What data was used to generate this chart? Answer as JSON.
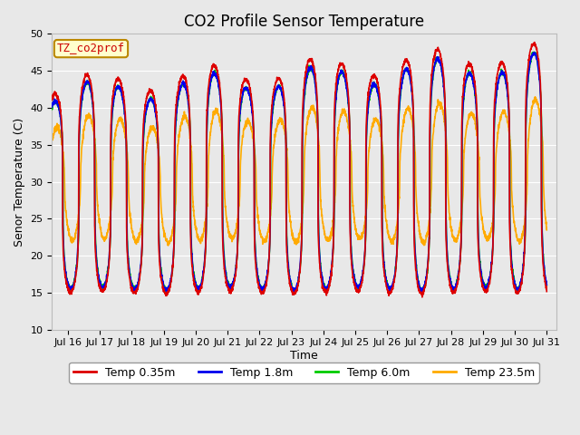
{
  "title": "CO2 Profile Sensor Temperature",
  "xlabel": "Time",
  "ylabel": "Senor Temperature (C)",
  "ylim": [
    10,
    50
  ],
  "xlim_days": [
    15.5,
    31.3
  ],
  "plot_bg": "#e8e8e8",
  "fig_bg": "#e8e8e8",
  "grid_color": "#d0d0d0",
  "series": {
    "temp_035": {
      "label": "Temp 0.35m",
      "color": "#dd0000",
      "lw": 1.2
    },
    "temp_18": {
      "label": "Temp 1.8m",
      "color": "#0000ee",
      "lw": 1.2
    },
    "temp_60": {
      "label": "Temp 6.0m",
      "color": "#00cc00",
      "lw": 1.2
    },
    "temp_235": {
      "label": "Temp 23.5m",
      "color": "#ffaa00",
      "lw": 1.2
    }
  },
  "legend_box_label": "TZ_co2prof",
  "legend_box_facecolor": "#ffffcc",
  "legend_box_edgecolor": "#bb8800",
  "legend_box_textcolor": "#cc0000",
  "xtick_labels": [
    "Jul 16",
    "Jul 17",
    "Jul 18",
    "Jul 19",
    "Jul 20",
    "Jul 21",
    "Jul 22",
    "Jul 23",
    "Jul 24",
    "Jul 25",
    "Jul 26",
    "Jul 27",
    "Jul 28",
    "Jul 29",
    "Jul 30",
    "Jul 31"
  ],
  "xtick_positions": [
    16,
    17,
    18,
    19,
    20,
    21,
    22,
    23,
    24,
    25,
    26,
    27,
    28,
    29,
    30,
    31
  ],
  "ytick_positions": [
    10,
    15,
    20,
    25,
    30,
    35,
    40,
    45,
    50
  ],
  "title_fontsize": 12,
  "axis_label_fontsize": 9,
  "tick_fontsize": 8,
  "legend_fontsize": 9
}
